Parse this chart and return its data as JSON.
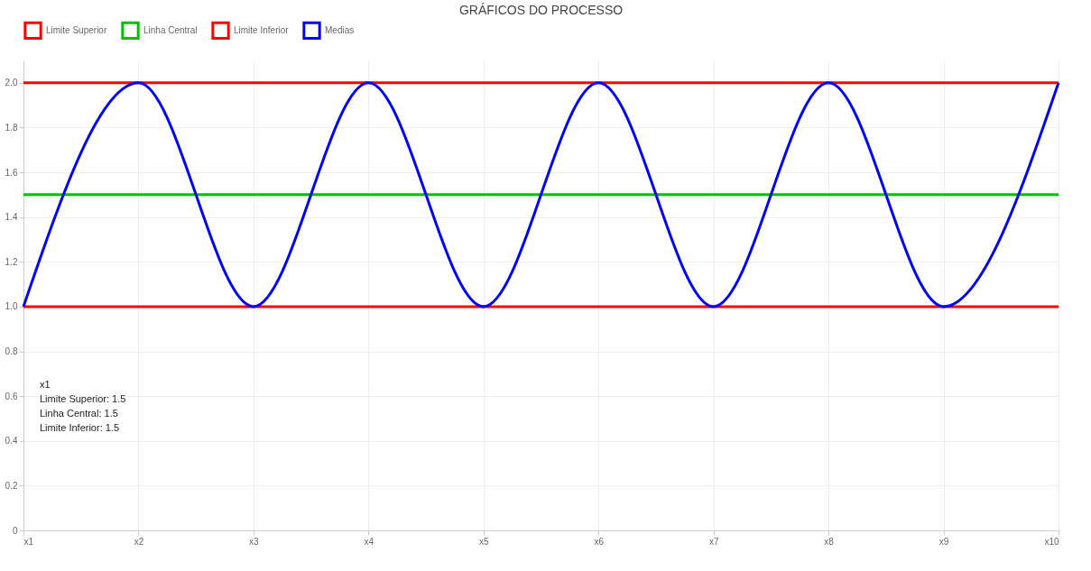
{
  "chart_data": {
    "type": "line",
    "title": "GRÁFICOS DO PROCESSO",
    "categories": [
      "x1",
      "x2",
      "x3",
      "x4",
      "x5",
      "x6",
      "x7",
      "x8",
      "x9",
      "x10"
    ],
    "series": [
      {
        "name": "Limite Superior",
        "color": "#ff0000",
        "values": [
          2,
          2,
          2,
          2,
          2,
          2,
          2,
          2,
          2,
          2
        ]
      },
      {
        "name": "Linha Central",
        "color": "#00c000",
        "values": [
          1.5,
          1.5,
          1.5,
          1.5,
          1.5,
          1.5,
          1.5,
          1.5,
          1.5,
          1.5
        ]
      },
      {
        "name": "Limite Inferior",
        "color": "#ff0000",
        "values": [
          1,
          1,
          1,
          1,
          1,
          1,
          1,
          1,
          1,
          1
        ]
      },
      {
        "name": "Medias",
        "color": "#0000ff",
        "values": [
          1,
          2,
          1,
          2,
          1,
          2,
          1,
          2,
          1,
          2
        ]
      }
    ],
    "ylim": [
      0,
      2.1
    ],
    "yticks": [
      0,
      {
        "value": 0.2,
        "label": "0.2"
      },
      {
        "value": 0.4,
        "label": "0.4"
      },
      {
        "value": 0.6,
        "label": "0.6"
      },
      {
        "value": 0.8,
        "label": "0.8"
      },
      {
        "value": 1,
        "label": "1.0"
      },
      {
        "value": 1.2,
        "label": "1.2"
      },
      {
        "value": 1.4,
        "label": "1.4"
      },
      {
        "value": 1.6,
        "label": "1.6"
      },
      {
        "value": 1.8,
        "label": "1.8"
      },
      {
        "value": 2,
        "label": "2.0"
      }
    ],
    "annotations": [
      "x1",
      "Limite Superior: 1.5",
      "Linha Central: 1.5",
      "Limite Inferior: 1.5"
    ],
    "grid": true,
    "legend": "top",
    "marker": "none",
    "line_style": "solid"
  }
}
